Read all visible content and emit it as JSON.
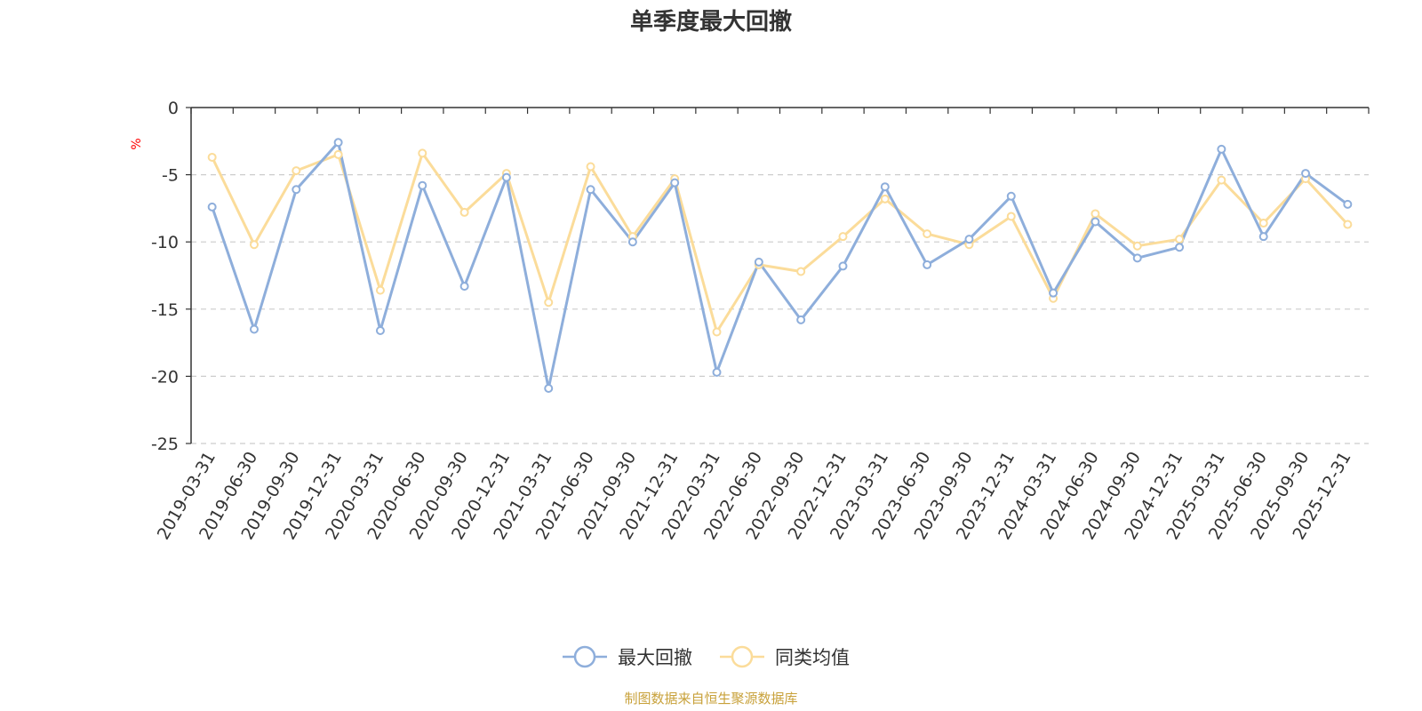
{
  "chart_data": {
    "type": "line",
    "title": "单季度最大回撤",
    "ylabel": "%",
    "ylim": [
      -25,
      0
    ],
    "yticks": [
      0,
      -5,
      -10,
      -15,
      -20,
      -25
    ],
    "grid": "horizontal-dashed",
    "legend_position": "bottom-center",
    "categories": [
      "2019-03-31",
      "2019-06-30",
      "2019-09-30",
      "2019-12-31",
      "2020-03-31",
      "2020-06-30",
      "2020-09-30",
      "2020-12-31",
      "2021-03-31",
      "2021-06-30",
      "2021-09-30",
      "2021-12-31",
      "2022-03-31",
      "2022-06-30",
      "2022-09-30",
      "2022-12-31",
      "2023-03-31",
      "2023-06-30",
      "2023-09-30",
      "2023-12-31",
      "2024-03-31",
      "2024-06-30",
      "2024-09-30",
      "2024-12-31",
      "2025-03-31",
      "2025-06-30",
      "2025-09-30",
      "2025-12-31"
    ],
    "series": [
      {
        "name": "最大回撤",
        "color": "#8eaedb",
        "values": [
          -7.4,
          -16.5,
          -6.1,
          -2.6,
          -16.6,
          -5.8,
          -13.3,
          -5.2,
          -20.9,
          -6.1,
          -10.0,
          -5.6,
          -19.7,
          -11.5,
          -15.8,
          -11.8,
          -5.9,
          -11.7,
          -9.8,
          -6.6,
          -13.8,
          -8.5,
          -11.2,
          -10.4,
          -3.1,
          -9.6,
          -4.9,
          -7.2
        ]
      },
      {
        "name": "同类均值",
        "color": "#fbdc9a",
        "values": [
          -3.7,
          -10.2,
          -4.7,
          -3.5,
          -13.6,
          -3.4,
          -7.8,
          -4.9,
          -14.5,
          -4.4,
          -9.6,
          -5.3,
          -16.7,
          -11.7,
          -12.2,
          -9.6,
          -6.8,
          -9.4,
          -10.2,
          -8.1,
          -14.2,
          -7.9,
          -10.3,
          -9.8,
          -5.4,
          -8.6,
          -5.3,
          -8.7
        ]
      }
    ]
  },
  "source_note": "制图数据来自恒生聚源数据库"
}
